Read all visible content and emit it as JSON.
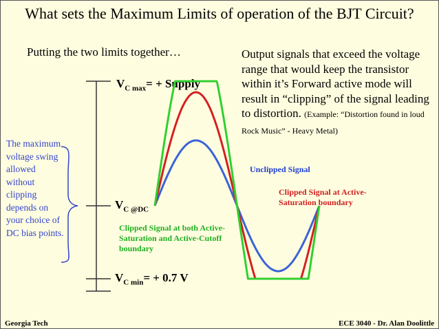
{
  "slide": {
    "title": "What sets the Maximum Limits of operation of the BJT Circuit?",
    "subtitle": "Putting the two limits together…",
    "description_main": "Output signals that exceed the voltage range that would keep the transistor within it’s Forward active mode will result in “clipping” of the signal leading to distortion.",
    "description_example": "(Example: “Distortion found in loud Rock Music” - Heavy Metal)",
    "margin_note": "The maximum voltage swing allowed without clipping depends on your choice of DC bias points.",
    "labels": {
      "vcmax_main": "V",
      "vcmax_sub": "C max",
      "vcmax_rest": "= + Supply",
      "vcdc_main": "V",
      "vcdc_sub": "C @DC",
      "vcmin_main": "V",
      "vcmin_sub": "C min",
      "vcmin_rest": "= + 0.7 V"
    },
    "legend": {
      "unclipped": "Unclipped Signal",
      "saturation_clip": "Clipped Signal at Active-Saturation boundary",
      "both_clip": "Clipped Signal at both Active-Saturation and Active-Cutoff boundary"
    },
    "footer": {
      "left": "Georgia Tech",
      "right": "ECE 3040 - Dr. Alan Doolittle"
    },
    "colors": {
      "unclipped": "#3a63d6",
      "saturation_clip": "#d42020",
      "both_clip": "#30d030",
      "note": "#3344cc",
      "background": "#fffde0"
    }
  }
}
